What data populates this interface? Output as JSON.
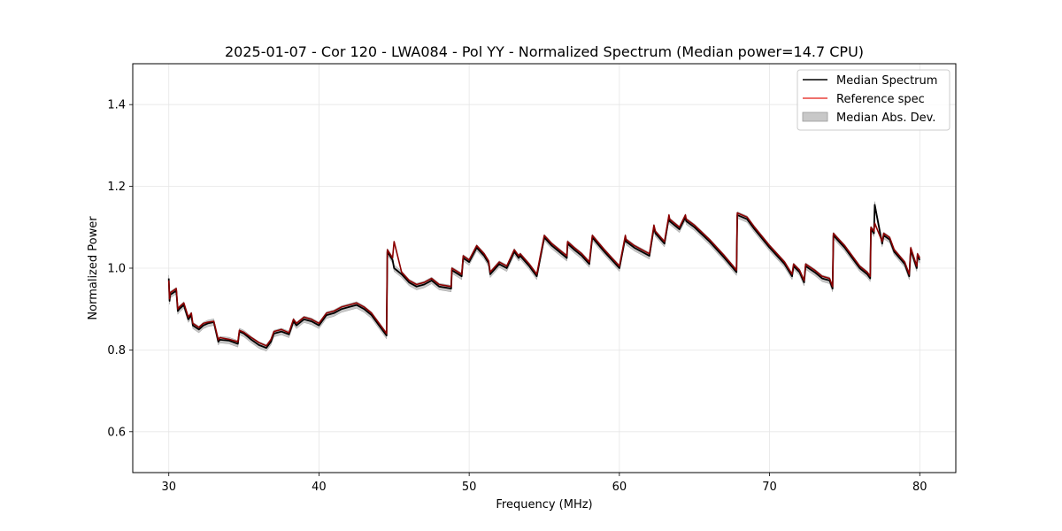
{
  "chart_data": {
    "type": "line",
    "title": "2025-01-07 - Cor 120 - LWA084 - Pol YY - Normalized Spectrum (Median power=14.7 CPU)",
    "xlabel": "Frequency (MHz)",
    "ylabel": "Normalized Power",
    "xlim": [
      27.6,
      82.4
    ],
    "ylim": [
      0.5,
      1.5
    ],
    "xticks": [
      30,
      40,
      50,
      60,
      70,
      80
    ],
    "xtick_labels": [
      "30",
      "40",
      "50",
      "60",
      "70",
      "80"
    ],
    "yticks": [
      0.6,
      0.8,
      1.0,
      1.2,
      1.4
    ],
    "ytick_labels": [
      "0.6",
      "0.8",
      "1.0",
      "1.2",
      "1.4"
    ],
    "grid": true,
    "legend_position": "top-right",
    "legend": [
      "Median Spectrum",
      "Reference spec",
      "Median Abs. Dev."
    ],
    "mad_band_halfwidth": 0.008,
    "colors": {
      "median": "#000000",
      "reference": "#e8413c",
      "reference_fill": "#8b0000",
      "mad_fill": "#c8c8c8"
    },
    "series": [
      {
        "name": "Median Spectrum",
        "x": [
          30.0,
          30.05,
          30.1,
          30.3,
          30.5,
          30.6,
          30.7,
          31.0,
          31.3,
          31.5,
          31.6,
          31.8,
          32.0,
          32.3,
          32.6,
          33.0,
          33.3,
          33.4,
          34.0,
          34.6,
          34.7,
          35.0,
          35.5,
          36.0,
          36.5,
          36.8,
          37.0,
          37.5,
          38.0,
          38.3,
          38.5,
          39.0,
          39.5,
          40.0,
          40.5,
          41.0,
          41.5,
          42.0,
          42.5,
          43.0,
          43.5,
          44.0,
          44.5,
          44.55,
          44.9,
          45.0,
          45.5,
          46.0,
          46.5,
          47.0,
          47.5,
          48.0,
          48.5,
          48.8,
          48.85,
          49.5,
          49.6,
          50.0,
          50.5,
          51.0,
          51.3,
          51.4,
          52.0,
          52.5,
          53.0,
          53.3,
          53.4,
          54.0,
          54.5,
          55.0,
          55.5,
          56.0,
          56.5,
          56.55,
          57.0,
          57.5,
          58.0,
          58.2,
          59.0,
          59.5,
          60.0,
          60.4,
          60.45,
          61.0,
          62.0,
          62.3,
          62.4,
          63.0,
          63.3,
          63.35,
          64.0,
          64.4,
          64.45,
          65.0,
          66.0,
          67.0,
          67.8,
          67.85,
          68.5,
          69.0,
          70.0,
          71.0,
          71.5,
          71.6,
          72.0,
          72.3,
          72.4,
          73.0,
          73.5,
          74.0,
          74.2,
          74.25,
          74.5,
          75.0,
          75.5,
          76.0,
          76.5,
          76.7,
          76.75,
          76.95,
          77.0,
          77.5,
          77.6,
          78.0,
          78.3,
          79.0,
          79.3,
          79.4,
          79.8,
          79.85,
          80.0
        ],
        "y": [
          0.975,
          0.92,
          0.935,
          0.94,
          0.945,
          0.895,
          0.9,
          0.91,
          0.875,
          0.885,
          0.86,
          0.855,
          0.85,
          0.86,
          0.865,
          0.868,
          0.82,
          0.825,
          0.823,
          0.815,
          0.845,
          0.84,
          0.825,
          0.812,
          0.805,
          0.82,
          0.84,
          0.845,
          0.838,
          0.87,
          0.86,
          0.875,
          0.87,
          0.86,
          0.885,
          0.89,
          0.9,
          0.905,
          0.91,
          0.9,
          0.885,
          0.86,
          0.835,
          1.04,
          1.02,
          1.0,
          0.985,
          0.965,
          0.955,
          0.96,
          0.97,
          0.955,
          0.952,
          0.95,
          0.995,
          0.98,
          1.025,
          1.015,
          1.05,
          1.03,
          1.012,
          0.985,
          1.01,
          1.0,
          1.04,
          1.025,
          1.03,
          1.005,
          0.98,
          1.075,
          1.055,
          1.04,
          1.025,
          1.06,
          1.045,
          1.03,
          1.01,
          1.075,
          1.04,
          1.02,
          1.0,
          1.075,
          1.065,
          1.05,
          1.03,
          1.1,
          1.085,
          1.06,
          1.125,
          1.115,
          1.095,
          1.125,
          1.115,
          1.1,
          1.065,
          1.025,
          0.99,
          1.13,
          1.12,
          1.095,
          1.05,
          1.01,
          0.98,
          1.005,
          0.99,
          0.965,
          1.005,
          0.99,
          0.975,
          0.97,
          0.95,
          1.08,
          1.07,
          1.05,
          1.025,
          1.0,
          0.985,
          0.975,
          1.095,
          1.085,
          1.155,
          1.06,
          1.08,
          1.07,
          1.04,
          1.01,
          0.98,
          1.045,
          1.0,
          1.03,
          1.02
        ]
      },
      {
        "name": "Reference spec",
        "x": [
          30.0,
          30.05,
          30.1,
          30.3,
          30.5,
          30.6,
          30.7,
          31.0,
          31.3,
          31.5,
          31.6,
          31.8,
          32.0,
          32.3,
          32.6,
          33.0,
          33.3,
          33.4,
          34.0,
          34.6,
          34.7,
          35.0,
          35.5,
          36.0,
          36.5,
          36.8,
          37.0,
          37.5,
          38.0,
          38.3,
          38.5,
          39.0,
          39.5,
          40.0,
          40.5,
          41.0,
          41.5,
          42.0,
          42.5,
          43.0,
          43.5,
          44.0,
          44.5,
          44.55,
          44.9,
          45.0,
          45.5,
          46.0,
          46.5,
          47.0,
          47.5,
          48.0,
          48.5,
          48.8,
          48.85,
          49.5,
          49.6,
          50.0,
          50.5,
          51.0,
          51.3,
          51.4,
          52.0,
          52.5,
          53.0,
          53.3,
          53.4,
          54.0,
          54.5,
          55.0,
          55.5,
          56.0,
          56.5,
          56.55,
          57.0,
          57.5,
          58.0,
          58.2,
          59.0,
          59.5,
          60.0,
          60.4,
          60.45,
          61.0,
          62.0,
          62.3,
          62.4,
          63.0,
          63.3,
          63.35,
          64.0,
          64.4,
          64.45,
          65.0,
          66.0,
          67.0,
          67.8,
          67.85,
          68.5,
          69.0,
          70.0,
          71.0,
          71.5,
          71.6,
          72.0,
          72.3,
          72.4,
          73.0,
          73.5,
          74.0,
          74.2,
          74.25,
          74.5,
          75.0,
          75.5,
          76.0,
          76.5,
          76.7,
          76.75,
          76.95,
          77.0,
          77.5,
          77.6,
          78.0,
          78.3,
          79.0,
          79.3,
          79.4,
          79.8,
          79.85,
          80.0
        ],
        "y": [
          0.97,
          0.925,
          0.94,
          0.945,
          0.95,
          0.9,
          0.905,
          0.915,
          0.88,
          0.89,
          0.865,
          0.86,
          0.855,
          0.865,
          0.868,
          0.87,
          0.825,
          0.83,
          0.826,
          0.82,
          0.848,
          0.843,
          0.83,
          0.818,
          0.81,
          0.825,
          0.845,
          0.85,
          0.842,
          0.875,
          0.865,
          0.88,
          0.875,
          0.865,
          0.89,
          0.895,
          0.905,
          0.91,
          0.915,
          0.905,
          0.89,
          0.865,
          0.84,
          1.045,
          1.025,
          1.065,
          0.99,
          0.97,
          0.96,
          0.965,
          0.975,
          0.96,
          0.957,
          0.955,
          1.0,
          0.985,
          1.03,
          1.02,
          1.055,
          1.035,
          1.017,
          0.99,
          1.015,
          1.005,
          1.045,
          1.03,
          1.035,
          1.01,
          0.985,
          1.08,
          1.06,
          1.045,
          1.03,
          1.065,
          1.05,
          1.035,
          1.015,
          1.08,
          1.045,
          1.025,
          1.005,
          1.08,
          1.07,
          1.055,
          1.035,
          1.105,
          1.09,
          1.065,
          1.13,
          1.12,
          1.1,
          1.13,
          1.12,
          1.105,
          1.07,
          1.03,
          0.995,
          1.135,
          1.125,
          1.1,
          1.055,
          1.015,
          0.985,
          1.01,
          0.995,
          0.97,
          1.01,
          0.995,
          0.98,
          0.975,
          0.955,
          1.085,
          1.075,
          1.055,
          1.03,
          1.005,
          0.99,
          0.98,
          1.1,
          1.09,
          1.11,
          1.065,
          1.085,
          1.075,
          1.045,
          1.015,
          0.985,
          1.05,
          1.005,
          1.035,
          1.025
        ]
      }
    ]
  }
}
